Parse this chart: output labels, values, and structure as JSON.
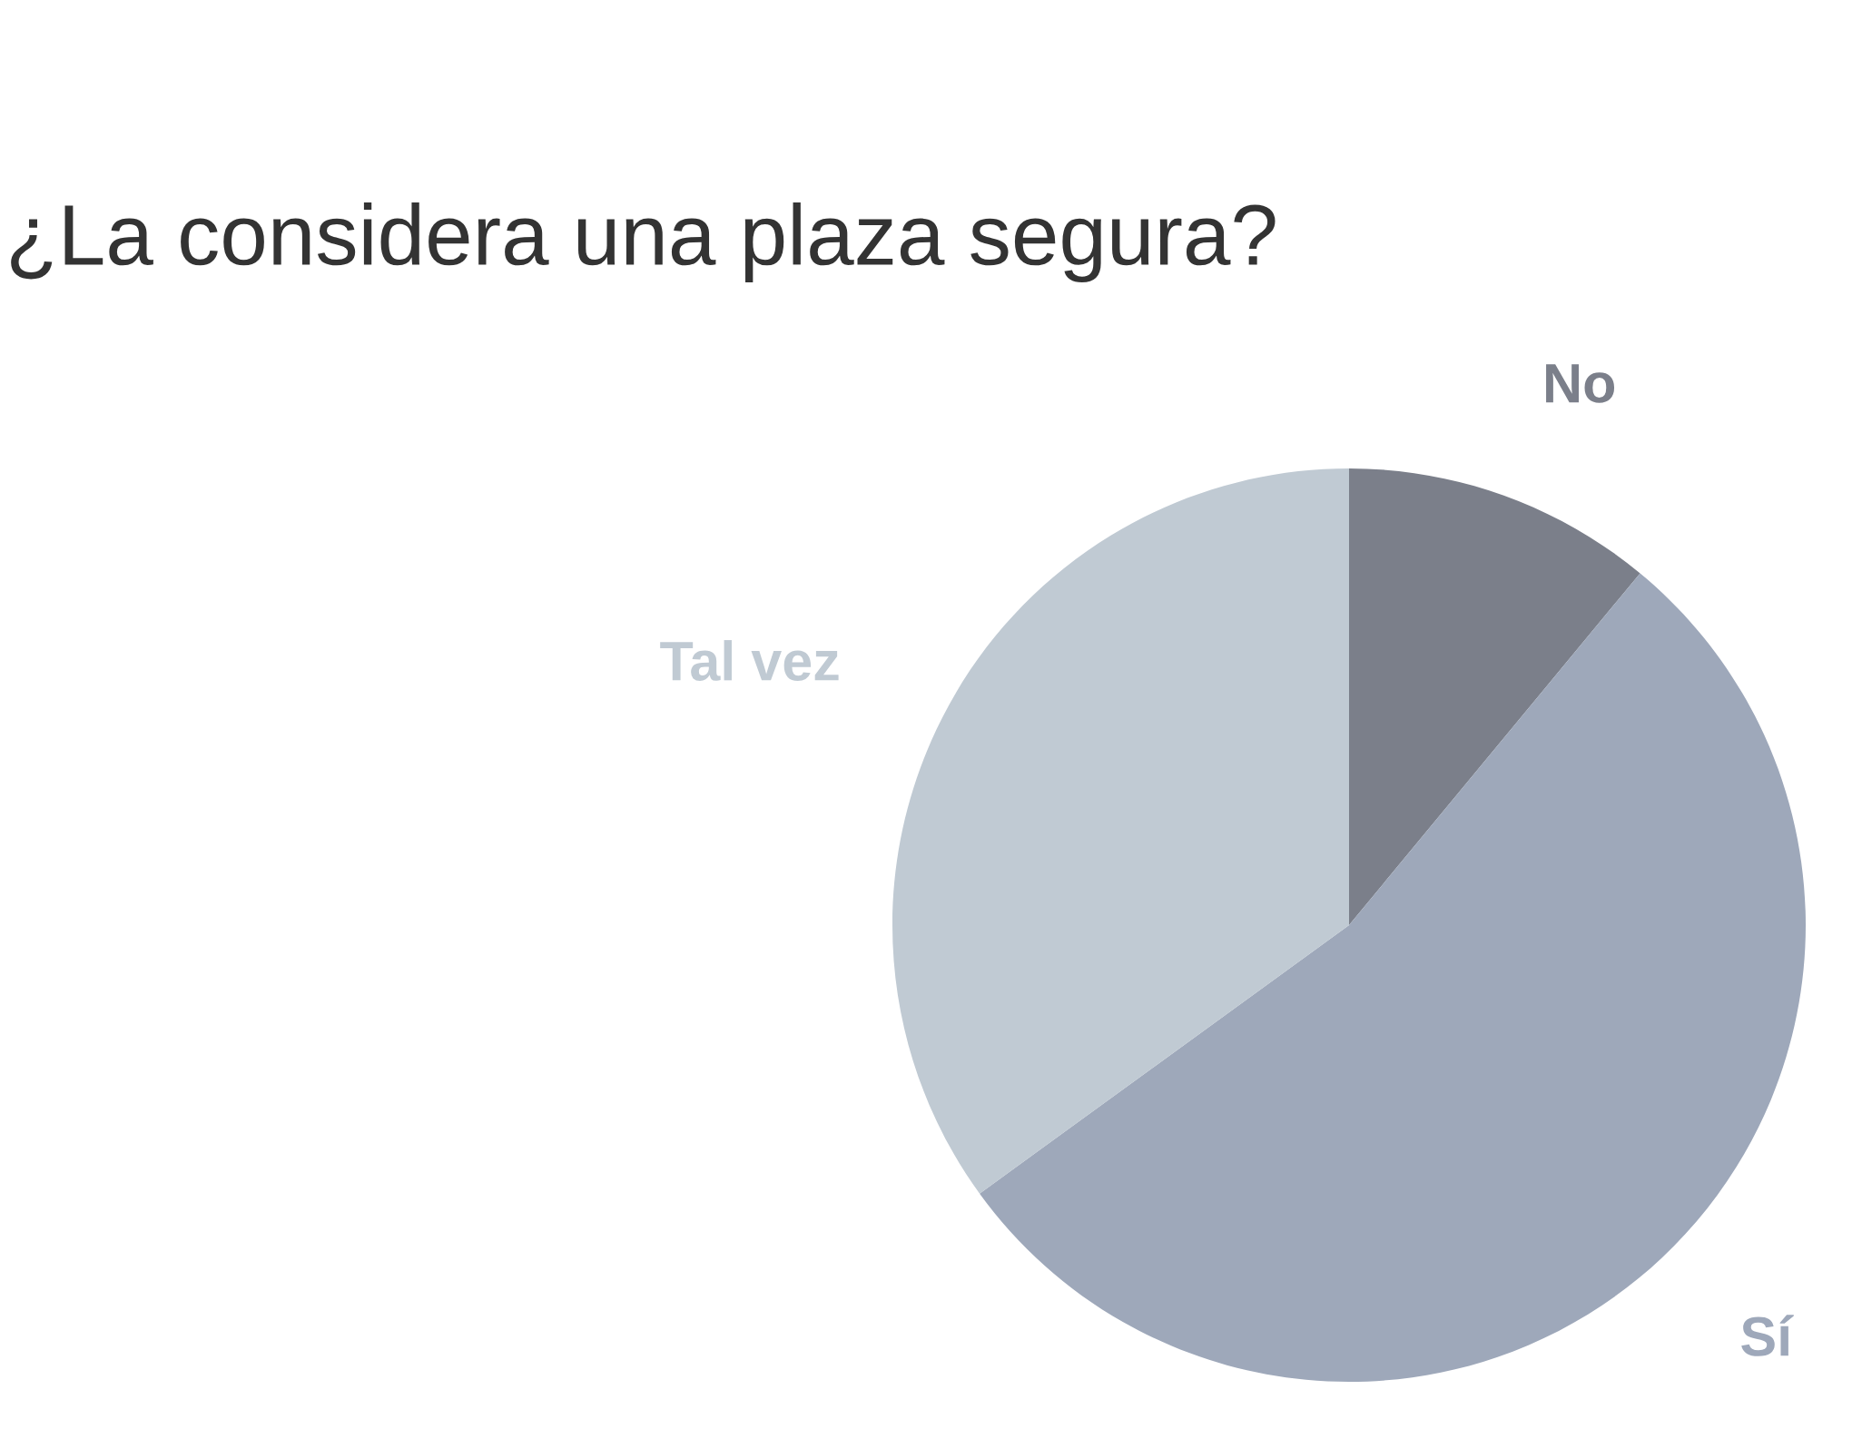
{
  "chart_data": {
    "type": "pie",
    "title": "¿La considera una plaza segura?",
    "categories": [
      "No",
      "Sí",
      "Tal vez"
    ],
    "values": [
      11,
      54,
      35
    ],
    "colors": [
      "#7b7f8a",
      "#9ea8ba",
      "#c0cad3"
    ]
  }
}
